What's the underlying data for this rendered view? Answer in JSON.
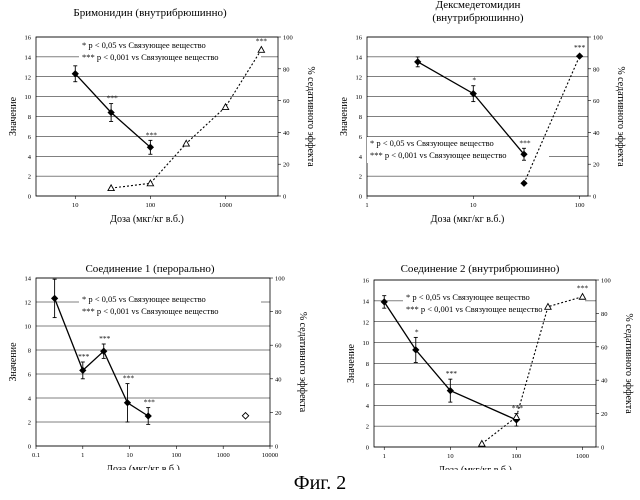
{
  "figure_caption": "Фиг. 2",
  "legend": {
    "single": "* p < 0,05 vs Связующее вещество",
    "triple": "*** p < 0,001 vs Связующее вещество"
  },
  "chart_data": [
    {
      "type": "line",
      "title": "Бримонидин (внутрибрюшинно)",
      "xlabel": "Доза (мкг/кг в.б.)",
      "ylabel": "Значение",
      "y2label": "% седативного эффекта",
      "xscale": "log",
      "xlim": [
        3,
        5000
      ],
      "ylim": [
        0,
        16
      ],
      "y2lim": [
        0,
        100
      ],
      "xticks": [
        "10",
        "100",
        "1000"
      ],
      "yticks": [
        "0",
        "2",
        "4",
        "6",
        "8",
        "10",
        "12",
        "14",
        "16"
      ],
      "y2ticks": [
        "0",
        "20",
        "40",
        "60",
        "80",
        "100"
      ],
      "legend_position": "top-center",
      "series": [
        {
          "axis": "left",
          "style": "solid",
          "marker": "diamond",
          "x": [
            10,
            30,
            100
          ],
          "y": [
            12.3,
            8.4,
            4.9
          ],
          "err": [
            0.8,
            0.9,
            0.7
          ],
          "labels": [
            "",
            "***",
            "***"
          ]
        },
        {
          "axis": "right",
          "style": "dotted",
          "marker": "triangle",
          "x": [
            30,
            100,
            300,
            1000,
            3000
          ],
          "y": [
            5,
            8,
            33,
            56,
            92
          ],
          "err": [
            0,
            0,
            0,
            0,
            0
          ],
          "labels": [
            "",
            "",
            "",
            "",
            "***"
          ]
        }
      ]
    },
    {
      "type": "line",
      "title": "Дексмедетомидин\n(внутрибрюшинно)",
      "xlabel": "Доза (мкг/кг в.б.)",
      "ylabel": "Значение",
      "y2label": "% седативного эффекта",
      "xscale": "log",
      "xlim": [
        1,
        120
      ],
      "ylim": [
        0,
        16
      ],
      "y2lim": [
        0,
        100
      ],
      "xticks": [
        "1",
        "10",
        "100"
      ],
      "yticks": [
        "0",
        "2",
        "4",
        "6",
        "8",
        "10",
        "12",
        "14",
        "16"
      ],
      "y2ticks": [
        "0",
        "20",
        "40",
        "60",
        "80",
        "100"
      ],
      "legend_position": "bottom-left",
      "series": [
        {
          "axis": "left",
          "style": "solid",
          "marker": "diamond",
          "x": [
            3,
            10,
            30
          ],
          "y": [
            13.5,
            10.3,
            4.2
          ],
          "err": [
            0.5,
            0.8,
            0.6
          ],
          "labels": [
            "",
            "*",
            "***"
          ]
        },
        {
          "axis": "right",
          "style": "dotted",
          "marker": "diamond",
          "x": [
            30,
            100
          ],
          "y": [
            8,
            88
          ],
          "err": [
            0,
            0
          ],
          "labels": [
            "",
            "***"
          ]
        }
      ]
    },
    {
      "type": "line",
      "title": "Соединение 1 (перорально)",
      "xlabel": "Доза (мкг/кг в.б.)",
      "ylabel": "Значение",
      "y2label": "% седативного эффекта",
      "xscale": "log",
      "xlim": [
        0.1,
        10000
      ],
      "ylim": [
        0,
        14
      ],
      "y2lim": [
        0,
        100
      ],
      "xticks": [
        "0.1",
        "1",
        "10",
        "100",
        "1000",
        "10000"
      ],
      "yticks": [
        "0",
        "2",
        "4",
        "6",
        "8",
        "10",
        "12",
        "14"
      ],
      "y2ticks": [
        "0",
        "20",
        "40",
        "60",
        "80",
        "100"
      ],
      "legend_position": "top-right",
      "series": [
        {
          "axis": "left",
          "style": "solid",
          "marker": "diamond",
          "x": [
            0.25,
            1,
            2.8,
            9,
            25
          ],
          "y": [
            12.3,
            6.3,
            7.9,
            3.6,
            2.5
          ],
          "err": [
            1.6,
            0.7,
            0.6,
            1.6,
            0.7
          ],
          "labels": [
            "",
            "***",
            "***",
            "***",
            "***"
          ]
        },
        {
          "axis": "right",
          "style": "none",
          "marker": "diamond-open",
          "x": [
            3000
          ],
          "y": [
            18
          ],
          "err": [
            0
          ],
          "labels": [
            ""
          ]
        }
      ]
    },
    {
      "type": "line",
      "title": "Соединение 2 (внутрибрюшинно)",
      "xlabel": "Доза (мкг/кг в.б.)",
      "ylabel": "Значение",
      "y2label": "% седативного эффекта",
      "xscale": "log",
      "xlim": [
        0.7,
        1600
      ],
      "ylim": [
        0,
        16
      ],
      "y2lim": [
        0,
        100
      ],
      "xticks": [
        "1",
        "10",
        "100",
        "1000"
      ],
      "yticks": [
        "0",
        "2",
        "4",
        "6",
        "8",
        "10",
        "12",
        "14",
        "16"
      ],
      "y2ticks": [
        "0",
        "20",
        "40",
        "60",
        "80",
        "100"
      ],
      "legend_position": "top-center",
      "series": [
        {
          "axis": "left",
          "style": "solid",
          "marker": "diamond",
          "x": [
            1,
            3,
            10,
            100
          ],
          "y": [
            13.9,
            9.3,
            5.4,
            2.6
          ],
          "err": [
            0.6,
            1.2,
            1.1,
            0.6
          ],
          "labels": [
            "",
            "*",
            "***",
            "***"
          ]
        },
        {
          "axis": "right",
          "style": "dotted",
          "marker": "triangle",
          "x": [
            30,
            100,
            300,
            1000
          ],
          "y": [
            2,
            18,
            84,
            90
          ],
          "err": [
            0,
            0,
            0,
            0
          ],
          "labels": [
            "",
            "",
            "",
            "***"
          ]
        }
      ]
    }
  ]
}
